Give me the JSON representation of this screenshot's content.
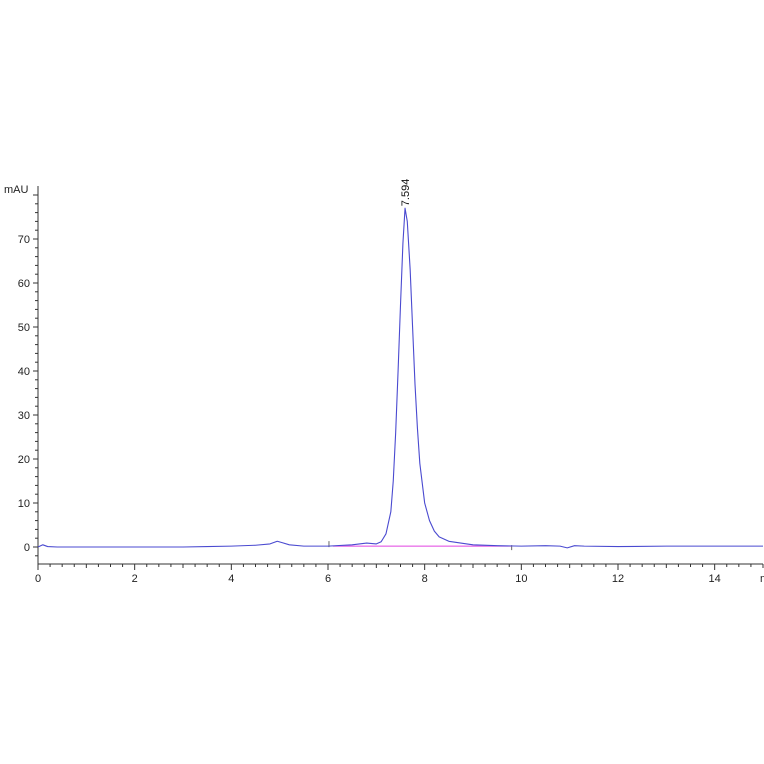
{
  "chart_data": {
    "type": "line",
    "title": "",
    "xlabel": "",
    "ylabel": "",
    "x_unit": "min",
    "y_unit": "mAU",
    "xlim": [
      0,
      15
    ],
    "ylim": [
      -4,
      82
    ],
    "x_ticks": [
      0,
      2,
      4,
      6,
      8,
      10,
      12,
      14
    ],
    "y_ticks": [
      0,
      10,
      20,
      30,
      40,
      50,
      60,
      70
    ],
    "grid": false,
    "legend": "none",
    "series": [
      {
        "color": "#4a4ad0",
        "x": [
          0.0,
          0.1,
          0.2,
          0.4,
          1.0,
          2.0,
          3.0,
          3.5,
          4.0,
          4.5,
          4.8,
          4.95,
          5.05,
          5.2,
          5.5,
          6.0,
          6.5,
          6.8,
          7.0,
          7.1,
          7.2,
          7.3,
          7.35,
          7.4,
          7.45,
          7.5,
          7.55,
          7.594,
          7.64,
          7.7,
          7.75,
          7.8,
          7.85,
          7.9,
          8.0,
          8.1,
          8.2,
          8.3,
          8.5,
          8.8,
          9.0,
          9.5,
          10.0,
          10.5,
          10.8,
          10.95,
          11.1,
          11.3,
          12.0,
          13.0,
          14.0,
          15.0
        ],
        "y": [
          0.0,
          0.5,
          0.1,
          0.0,
          0.0,
          0.0,
          0.0,
          0.1,
          0.2,
          0.4,
          0.7,
          1.3,
          1.0,
          0.5,
          0.2,
          0.2,
          0.5,
          0.9,
          0.7,
          1.2,
          3.0,
          8.0,
          15.0,
          26.0,
          40.0,
          55.0,
          69.0,
          77.0,
          74.0,
          63.0,
          50.0,
          37.0,
          27.0,
          19.0,
          10.0,
          6.0,
          3.6,
          2.3,
          1.3,
          0.8,
          0.5,
          0.3,
          0.2,
          0.3,
          0.2,
          -0.2,
          0.3,
          0.2,
          0.1,
          0.2,
          0.2,
          0.2
        ]
      }
    ],
    "baseline": {
      "color": "#e040e0",
      "x": [
        6.1,
        9.8
      ],
      "y": [
        0.2,
        0.2
      ]
    },
    "annotations": [
      {
        "text": "7.594",
        "x": 7.594,
        "y": 77.0
      }
    ]
  }
}
